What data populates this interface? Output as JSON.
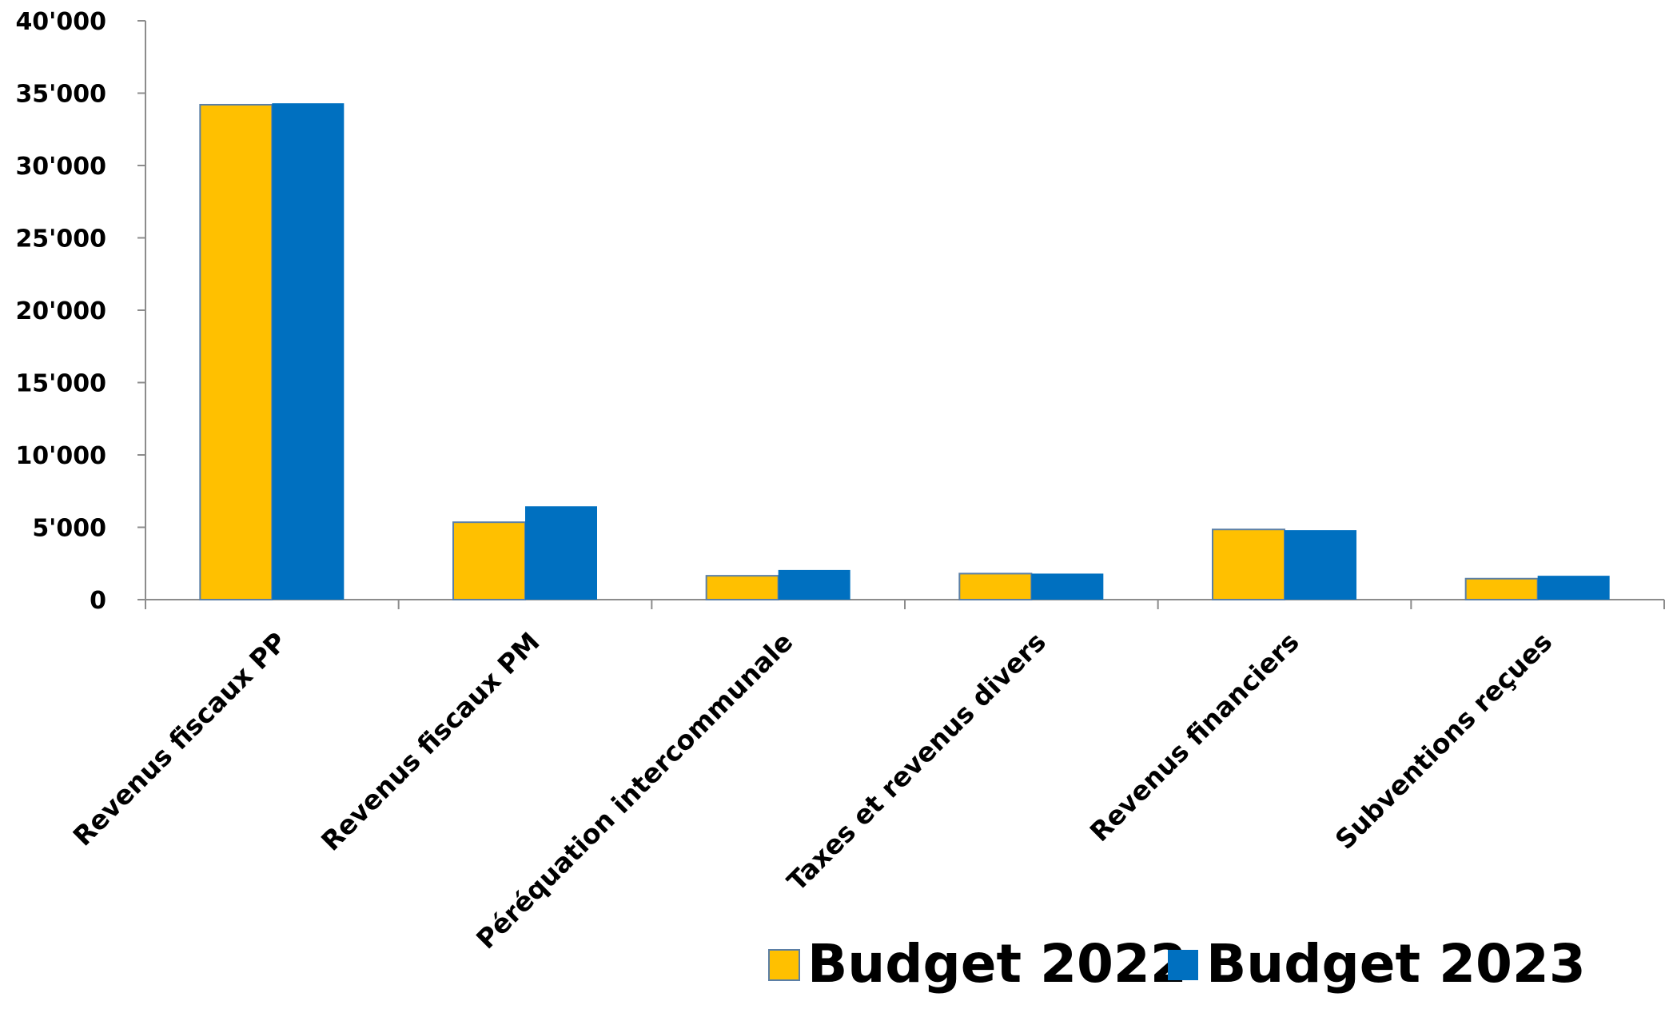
{
  "chart_data": {
    "type": "bar",
    "categories": [
      "Revenus fiscaux PP",
      "Revenus fiscaux PM",
      "Péréquation intercommunale",
      "Taxes et revenus divers",
      "Revenus financiers",
      "Subventions reçues"
    ],
    "series": [
      {
        "name": "Budget 2022",
        "color": "#FFC000",
        "values": [
          34200,
          5350,
          1650,
          1800,
          4850,
          1450
        ]
      },
      {
        "name": "Budget 2023",
        "color": "#0070C0",
        "values": [
          34300,
          6450,
          2050,
          1800,
          4800,
          1650
        ]
      }
    ],
    "ylim": [
      0,
      40000
    ],
    "yticks": [
      0,
      5000,
      10000,
      15000,
      20000,
      25000,
      30000,
      35000,
      40000
    ],
    "ytick_labels": [
      "0",
      "5'000",
      "10'000",
      "15'000",
      "20'000",
      "25'000",
      "30'000",
      "35'000",
      "40'000"
    ],
    "title": "",
    "xlabel": "",
    "ylabel": "",
    "grid": false,
    "legend_position": "bottom-right"
  }
}
